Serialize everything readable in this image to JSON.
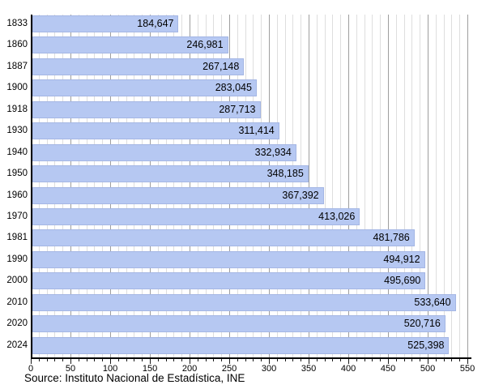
{
  "chart_data": {
    "type": "bar",
    "orientation": "horizontal",
    "title": "",
    "xlabel": "",
    "ylabel": "",
    "categories": [
      "1833",
      "1860",
      "1887",
      "1900",
      "1918",
      "1930",
      "1940",
      "1950",
      "1960",
      "1970",
      "1981",
      "1990",
      "2000",
      "2010",
      "2020",
      "2024"
    ],
    "values": [
      184647,
      246981,
      267148,
      283045,
      287713,
      311414,
      332934,
      348185,
      367392,
      413026,
      481786,
      494912,
      495690,
      533640,
      520716,
      525398
    ],
    "value_labels": [
      "184,647",
      "246,981",
      "267,148",
      "283,045",
      "287,713",
      "311,414",
      "332,934",
      "348,185",
      "367,392",
      "413,026",
      "481,786",
      "494,912",
      "495,690",
      "533,640",
      "520,716",
      "525,398"
    ],
    "x_unit_divisor": 1000,
    "xlim": [
      0,
      555
    ],
    "x_major_step": 50,
    "x_minor_step": 10,
    "x_tick_labels": [
      "0",
      "50",
      "100",
      "150",
      "200",
      "250",
      "300",
      "350",
      "400",
      "450",
      "500",
      "550"
    ],
    "grid": "on",
    "legend": "none",
    "source_note": "Source: Instituto Nacional de Estadística, INE",
    "colors": {
      "bar_fill": "#b6c8f2",
      "bar_border": "#a4b6e4",
      "grid_minor": "#dedede",
      "grid_major": "#9e9e9e",
      "axis": "#000000",
      "text": "#000000",
      "background": "#ffffff"
    }
  }
}
